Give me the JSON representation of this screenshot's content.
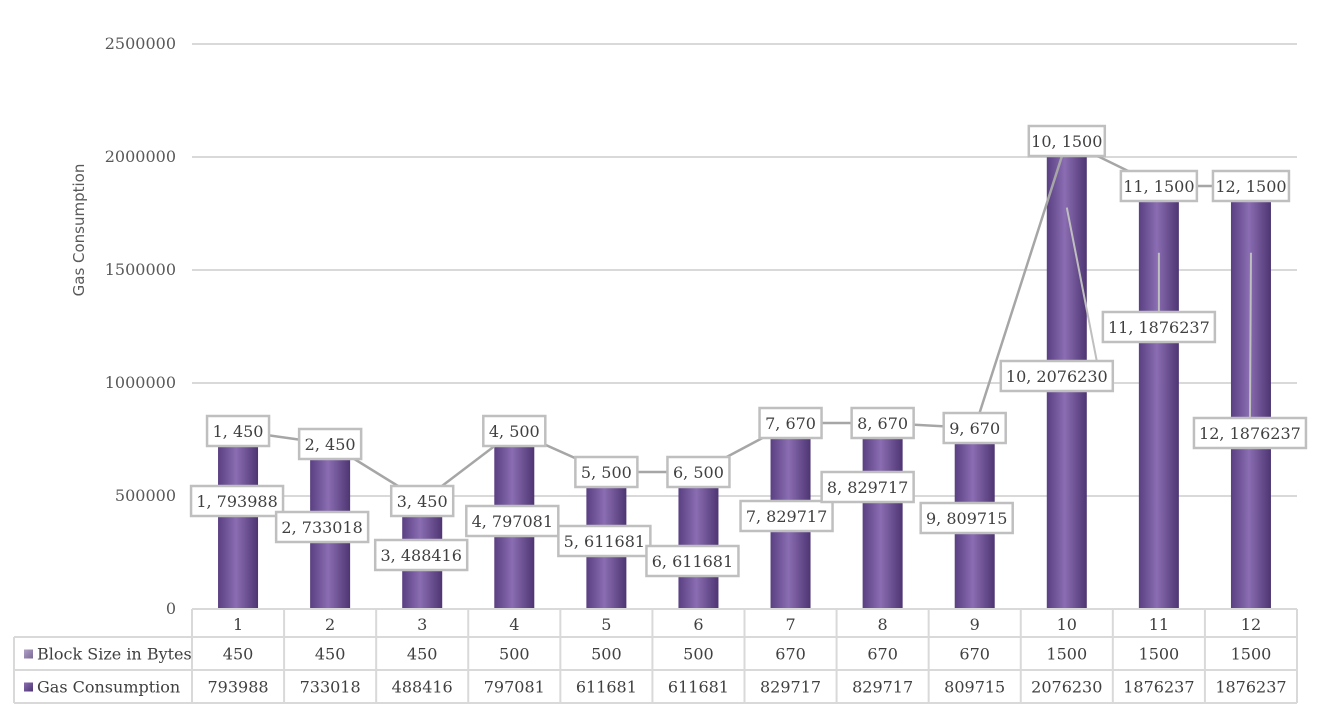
{
  "chart_data": {
    "type": "bar",
    "ylabel": "Gas Consumption",
    "ylim": [
      0,
      2500000
    ],
    "yticks": [
      "0",
      "500000",
      "1000000",
      "1500000",
      "2000000",
      "2500000"
    ],
    "categories": [
      "1",
      "2",
      "3",
      "4",
      "5",
      "6",
      "7",
      "8",
      "9",
      "10",
      "11",
      "12"
    ],
    "series": [
      {
        "name": "Block Size in Bytes",
        "kind": "line",
        "color": "#a6a6a6",
        "values": [
          450,
          450,
          450,
          500,
          500,
          500,
          670,
          670,
          670,
          1500,
          1500,
          1500
        ],
        "labels": [
          "1, 450",
          "2, 450",
          "3, 450",
          "4, 500",
          "5, 500",
          "6, 500",
          "7, 670",
          "8, 670",
          "9, 670",
          "10, 1500",
          "11, 1500",
          "12, 1500"
        ],
        "table_values": [
          "450",
          "450",
          "450",
          "500",
          "500",
          "500",
          "670",
          "670",
          "670",
          "1500",
          "1500",
          "1500"
        ]
      },
      {
        "name": "Gas Consumption",
        "kind": "bar",
        "color": "#7a5ca0",
        "values": [
          793988,
          733018,
          488416,
          797081,
          611681,
          611681,
          829717,
          829717,
          809715,
          2076230,
          1876237,
          1876237
        ],
        "labels": [
          "1, 793988",
          "2, 733018",
          "3, 488416",
          "4, 797081",
          "5, 611681",
          "6, 611681",
          "7, 829717",
          "8, 829717",
          "9, 809715",
          "10, 2076230",
          "11, 1876237",
          "12, 1876237"
        ],
        "table_values": [
          "793988",
          "733018",
          "488416",
          "797081",
          "611681",
          "611681",
          "829717",
          "829717",
          "809715",
          "2076230",
          "1876237",
          "1876237"
        ]
      }
    ],
    "legend": "data-table-below",
    "grid": true
  }
}
